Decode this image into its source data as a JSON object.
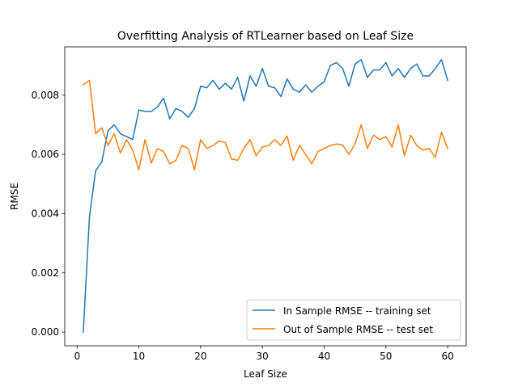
{
  "chart_data": {
    "type": "line",
    "title": "Overfitting Analysis of RTLearner based on Leaf Size",
    "xlabel": "Leaf Size",
    "ylabel": "RMSE",
    "xlim": [
      -2,
      63
    ],
    "ylim": [
      -0.00046,
      0.00963
    ],
    "xticks": [
      0,
      10,
      20,
      30,
      40,
      50,
      60
    ],
    "xtick_labels": [
      "0",
      "10",
      "20",
      "30",
      "40",
      "50",
      "60"
    ],
    "yticks": [
      0,
      0.002,
      0.004,
      0.006,
      0.008
    ],
    "ytick_labels": [
      "0.000",
      "0.002",
      "0.004",
      "0.006",
      "0.008"
    ],
    "grid": false,
    "legend_position": "lower-right",
    "x": [
      1,
      2,
      3,
      4,
      5,
      6,
      7,
      8,
      9,
      10,
      11,
      12,
      13,
      14,
      15,
      16,
      17,
      18,
      19,
      20,
      21,
      22,
      23,
      24,
      25,
      26,
      27,
      28,
      29,
      30,
      31,
      32,
      33,
      34,
      35,
      36,
      37,
      38,
      39,
      40,
      41,
      42,
      43,
      44,
      45,
      46,
      47,
      48,
      49,
      50,
      51,
      52,
      53,
      54,
      55,
      56,
      57,
      58,
      59,
      60
    ],
    "series": [
      {
        "name": "In Sample RMSE -- training set",
        "color": "#1f77b4",
        "values": [
          0.0,
          0.0039,
          0.00545,
          0.00575,
          0.0068,
          0.007,
          0.0067,
          0.0066,
          0.0065,
          0.0075,
          0.00745,
          0.00745,
          0.0076,
          0.0079,
          0.0072,
          0.00755,
          0.00745,
          0.00725,
          0.00755,
          0.0083,
          0.00825,
          0.0085,
          0.0082,
          0.0084,
          0.0082,
          0.0086,
          0.0078,
          0.00865,
          0.0083,
          0.0089,
          0.0083,
          0.00825,
          0.00795,
          0.00855,
          0.0082,
          0.0081,
          0.00835,
          0.0081,
          0.0083,
          0.00845,
          0.009,
          0.0091,
          0.0089,
          0.0083,
          0.00905,
          0.0092,
          0.0086,
          0.00885,
          0.00885,
          0.0091,
          0.00865,
          0.0089,
          0.0086,
          0.0089,
          0.00905,
          0.00865,
          0.00865,
          0.0089,
          0.0092,
          0.0085
        ]
      },
      {
        "name": "Out of Sample RMSE -- test set",
        "color": "#ff7f0e",
        "values": [
          0.00835,
          0.0085,
          0.0067,
          0.0069,
          0.0063,
          0.0067,
          0.00605,
          0.0065,
          0.00615,
          0.00548,
          0.0065,
          0.0057,
          0.0062,
          0.0061,
          0.00568,
          0.0058,
          0.0063,
          0.0062,
          0.00548,
          0.0065,
          0.0062,
          0.0063,
          0.00645,
          0.0064,
          0.00585,
          0.0058,
          0.0062,
          0.0065,
          0.00595,
          0.00625,
          0.0063,
          0.0065,
          0.0063,
          0.00662,
          0.0058,
          0.0063,
          0.006,
          0.00568,
          0.0061,
          0.0062,
          0.0063,
          0.00635,
          0.00632,
          0.006,
          0.00635,
          0.007,
          0.0062,
          0.00665,
          0.0065,
          0.0066,
          0.00625,
          0.007,
          0.00595,
          0.00665,
          0.0063,
          0.00615,
          0.0062,
          0.0059,
          0.00675,
          0.0062
        ]
      }
    ]
  }
}
